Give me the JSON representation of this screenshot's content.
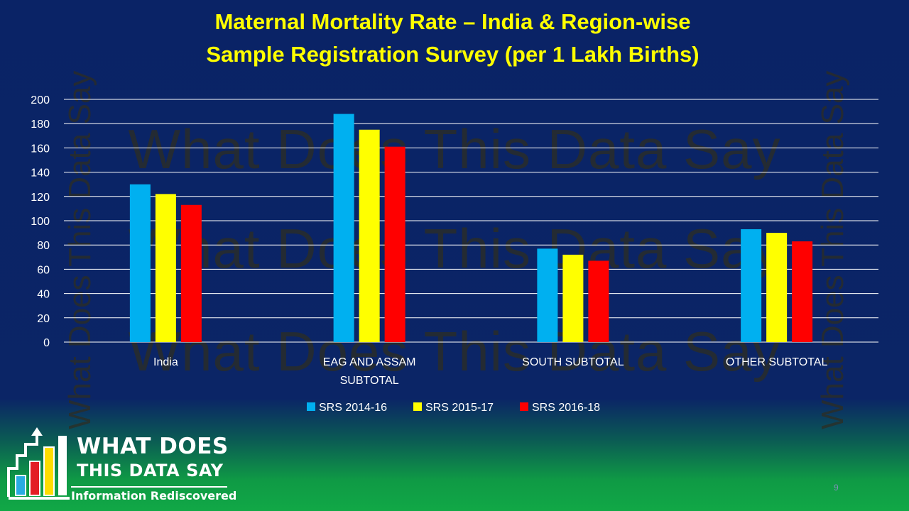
{
  "slide": {
    "title_line1": "Maternal Mortality Rate – India & Region-wise",
    "title_line2": "Sample Registration Survey (per 1 Lakh Births)",
    "watermark": "What Does This Data Say",
    "page_number": "9"
  },
  "logo": {
    "line1": "WHAT DOES",
    "line2": "THIS DATA SAY",
    "tagline": "Information Rediscovered"
  },
  "colors": {
    "background": "#0b2566",
    "title": "#ffff00",
    "series": [
      "#00b0f0",
      "#ffff00",
      "#ff0000"
    ]
  },
  "chart_data": {
    "type": "bar",
    "title": "Maternal Mortality Rate – India & Region-wise Sample Registration Survey (per 1 Lakh Births)",
    "categories": [
      "India",
      "EAG AND ASSAM SUBTOTAL",
      "SOUTH SUBTOTAL",
      "OTHER SUBTOTAL"
    ],
    "category_lines": [
      [
        "India"
      ],
      [
        "EAG AND ASSAM",
        "SUBTOTAL"
      ],
      [
        "SOUTH SUBTOTAL"
      ],
      [
        "OTHER SUBTOTAL"
      ]
    ],
    "series": [
      {
        "name": "SRS 2014-16",
        "color": "#00b0f0",
        "values": [
          130,
          188,
          77,
          93
        ]
      },
      {
        "name": "SRS 2015-17",
        "color": "#ffff00",
        "values": [
          122,
          175,
          72,
          90
        ]
      },
      {
        "name": "SRS 2016-18",
        "color": "#ff0000",
        "values": [
          113,
          161,
          67,
          83
        ]
      }
    ],
    "ylim": [
      0,
      200
    ],
    "yticks": [
      0,
      20,
      40,
      60,
      80,
      100,
      120,
      140,
      160,
      180,
      200
    ],
    "grid": true,
    "legend": "bottom"
  }
}
